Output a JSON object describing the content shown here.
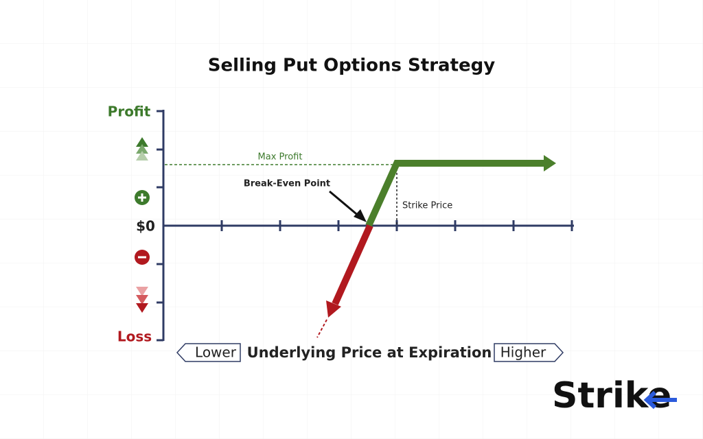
{
  "header": {
    "title": "Selling Put Options Strategy"
  },
  "axis": {
    "y_top": "Profit",
    "y_bottom": "Loss",
    "zero": "$0",
    "x_left": "Lower",
    "x_label": "Underlying Price at Expiration",
    "x_right": "Higher"
  },
  "annotations": {
    "max_profit": "Max Profit",
    "break_even": "Break-Even Point",
    "strike_price": "Strike Price"
  },
  "logo": "Strike"
}
